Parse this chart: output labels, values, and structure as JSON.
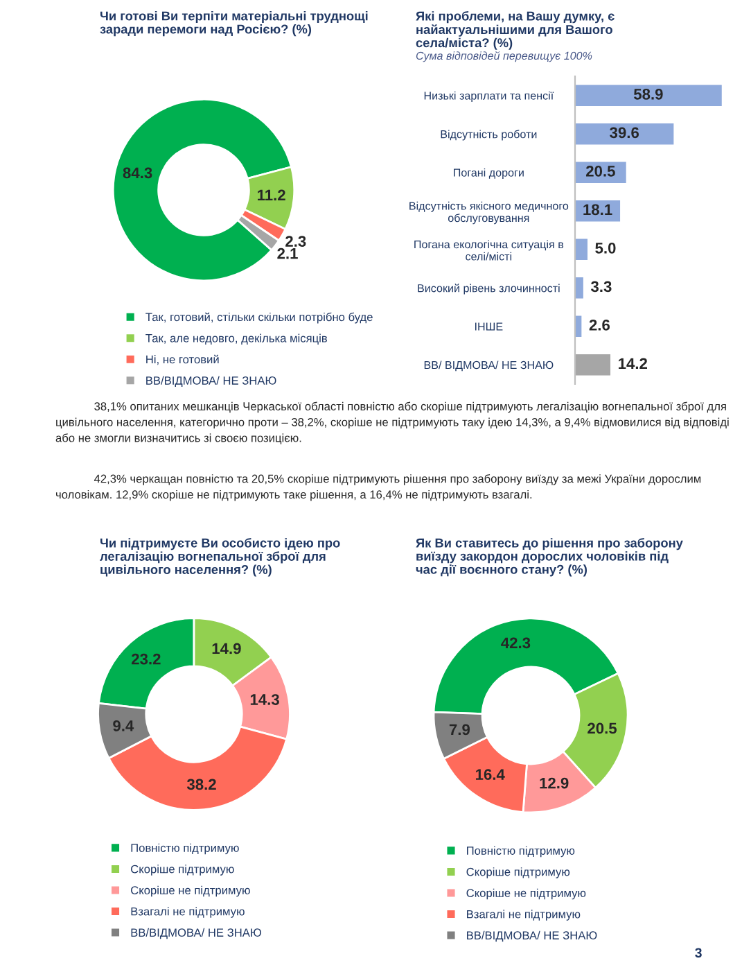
{
  "chart_data": [
    {
      "type": "donut",
      "title": "Чи готові Ви терпіти матеріальні труднощі\nзаради перемоги над Росією? (%)",
      "categories": [
        "Так, готовий, стільки скільки потрібно буде",
        "Так, але недовго, декілька місяців",
        "Ні, не готовий",
        "ВВ/ВІДМОВА/ НЕ ЗНАЮ"
      ],
      "values": [
        84.3,
        11.2,
        2.3,
        2.1
      ],
      "colors": [
        "#00b050",
        "#92d050",
        "#ff6b5b",
        "#a6a6a6"
      ],
      "data_labels": true,
      "legend": "bottom"
    },
    {
      "type": "bar",
      "orientation": "horizontal",
      "title": "Які проблеми, на Вашу думку, є\nнайактуальнішими для Вашого\nсела/міста? (%)",
      "subtitle": "Сума відповідей перевищує 100%",
      "categories": [
        "Низькі зарплати та пенсії",
        "Відсутність роботи",
        "Погані дороги",
        "Відсутність якісного медичного\nобслуговування",
        "Погана екологічна ситуація в\nселі/місті",
        "Високий рівень злочинності",
        "ІНШЕ",
        "ВВ/ ВІДМОВА/ НЕ ЗНАЮ"
      ],
      "values": [
        58.9,
        39.6,
        20.5,
        18.1,
        5.0,
        3.3,
        2.6,
        14.2
      ],
      "value_labels": [
        "58.9",
        "39.6",
        "20.5",
        "18.1",
        "5.0",
        "3.3",
        "2.6",
        "14.2"
      ],
      "colors": [
        "#8faadc",
        "#8faadc",
        "#8faadc",
        "#8faadc",
        "#8faadc",
        "#8faadc",
        "#8faadc",
        "#a6a6a6"
      ],
      "tick_labels": "y"
    },
    {
      "type": "other",
      "annotations": [
        "38,1% опитаних мешканців Черкаської області повністю або скоріше підтримують легалізацію вогнепальної зброї для цивільного населення, категорично проти – 38,2%, скоріше не підтримують таку ідею 14,3%, а 9,4% відмовилися від відповіді або не змогли визначитись зі своєю позицією.",
        "42,3% черкащан повністю та 20,5% скоріше підтримують рішення про заборону виїзду за межі України дорослим чоловікам. 12,9% скоріше не підтримують таке рішення, а 16,4% не підтримують взагалі."
      ]
    },
    {
      "type": "donut",
      "title": "Чи підтримуєте Ви особисто ідею про\nлегалізацію вогнепальної зброї для\nцивільного населення? (%)",
      "categories": [
        "Повністю підтримую",
        "Скоріше підтримую",
        "Скоріше не підтримую",
        "Взагалі не підтримую",
        "ВВ/ВІДМОВА/ НЕ ЗНАЮ"
      ],
      "values": [
        23.2,
        14.9,
        14.3,
        38.2,
        9.4
      ],
      "colors": [
        "#00b050",
        "#92d050",
        "#ff9999",
        "#ff6b5b",
        "#808080"
      ],
      "data_labels": true,
      "legend": "bottom"
    },
    {
      "type": "donut",
      "title": "Як Ви ставитесь до рішення про заборону\nвиїзду закордон дорослих чоловіків під\nчас дії воєнного стану? (%)",
      "categories": [
        "Повністю підтримую",
        "Скоріше підтримую",
        "Скоріше не підтримую",
        "Взагалі не підтримую",
        "ВВ/ВІДМОВА/ НЕ ЗНАЮ"
      ],
      "values": [
        42.3,
        20.5,
        12.9,
        16.4,
        7.9
      ],
      "colors": [
        "#00b050",
        "#92d050",
        "#ff9999",
        "#ff6b5b",
        "#808080"
      ],
      "data_labels": true,
      "legend": "bottom",
      "annotations": [
        "3"
      ]
    }
  ]
}
